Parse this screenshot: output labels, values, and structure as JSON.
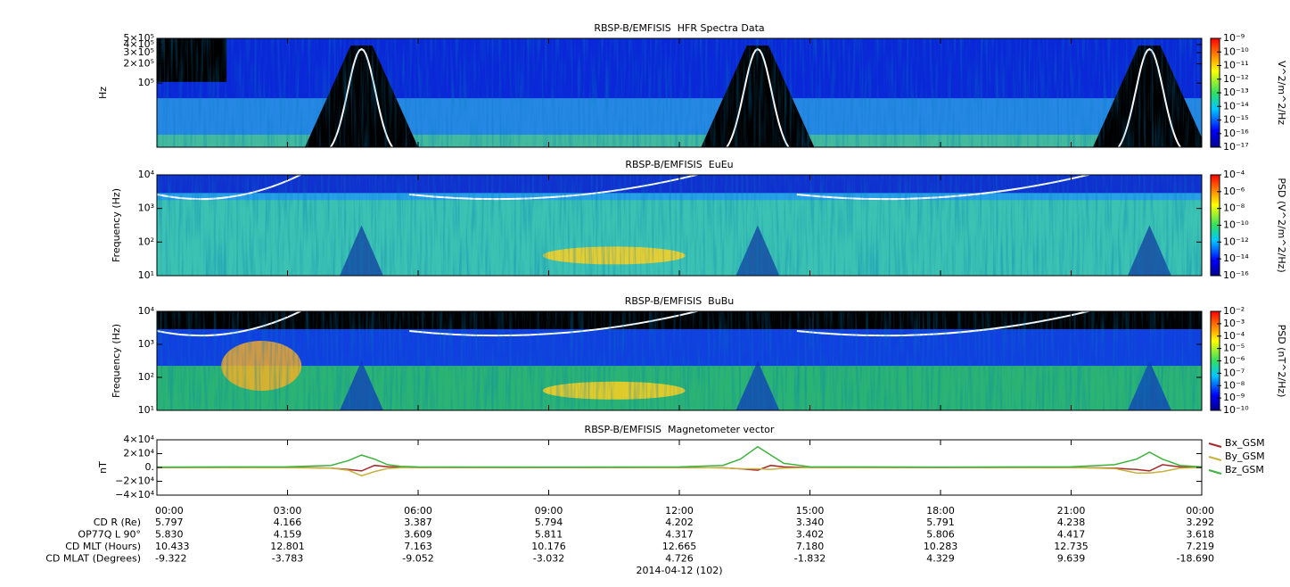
{
  "chart_data": [
    {
      "type": "spectrogram",
      "title": "RBSP-B/EMFISIS  HFR Spectra Data",
      "ylabel": "Hz",
      "log_scale": true,
      "ylim": [
        10000,
        500000
      ],
      "yticks": [
        {
          "value": 500000,
          "label": "5×10⁵"
        },
        {
          "value": 400000,
          "label": "4×10⁵"
        },
        {
          "value": 300000,
          "label": "3×10⁵"
        },
        {
          "value": 200000,
          "label": "2×10⁵"
        },
        {
          "value": 100000,
          "label": "10⁵"
        }
      ],
      "colorbar": {
        "label": "V^2/m^2/Hz",
        "lim": [
          1e-17,
          1e-09
        ],
        "ticks": [
          {
            "value": 1e-09,
            "label": "10⁻⁹"
          },
          {
            "value": 1e-10,
            "label": "10⁻¹⁰"
          },
          {
            "value": 1e-11,
            "label": "10⁻¹¹"
          },
          {
            "value": 1e-12,
            "label": "10⁻¹²"
          },
          {
            "value": 1e-13,
            "label": "10⁻¹³"
          },
          {
            "value": 1e-14,
            "label": "10⁻¹⁴"
          },
          {
            "value": 1e-15,
            "label": "10⁻¹⁵"
          },
          {
            "value": 1e-16,
            "label": "10⁻¹⁶"
          },
          {
            "value": 1e-17,
            "label": "10⁻¹⁷"
          }
        ]
      }
    },
    {
      "type": "spectrogram",
      "title": "RBSP-B/EMFISIS  EuEu",
      "ylabel": "Frequency (Hz)",
      "log_scale": true,
      "ylim": [
        10,
        10000
      ],
      "yticks": [
        {
          "value": 10000,
          "label": "10⁴"
        },
        {
          "value": 1000,
          "label": "10³"
        },
        {
          "value": 100,
          "label": "10²"
        },
        {
          "value": 10,
          "label": "10¹"
        }
      ],
      "colorbar": {
        "label": "PSD (V^2/m^2/Hz)",
        "lim": [
          1e-16,
          0.0001
        ],
        "ticks": [
          {
            "value": 0.0001,
            "label": "10⁻⁴"
          },
          {
            "value": 1e-06,
            "label": "10⁻⁶"
          },
          {
            "value": 1e-08,
            "label": "10⁻⁸"
          },
          {
            "value": 1e-10,
            "label": "10⁻¹⁰"
          },
          {
            "value": 1e-12,
            "label": "10⁻¹²"
          },
          {
            "value": 1e-14,
            "label": "10⁻¹⁴"
          },
          {
            "value": 1e-16,
            "label": "10⁻¹⁶"
          }
        ]
      }
    },
    {
      "type": "spectrogram",
      "title": "RBSP-B/EMFISIS  BuBu",
      "ylabel": "Frequency (Hz)",
      "log_scale": true,
      "ylim": [
        10,
        10000
      ],
      "yticks": [
        {
          "value": 10000,
          "label": "10⁴"
        },
        {
          "value": 1000,
          "label": "10³"
        },
        {
          "value": 100,
          "label": "10²"
        },
        {
          "value": 10,
          "label": "10¹"
        }
      ],
      "colorbar": {
        "label": "PSD (nT^2/Hz)",
        "lim": [
          1e-10,
          0.01
        ],
        "ticks": [
          {
            "value": 0.01,
            "label": "10⁻²"
          },
          {
            "value": 0.001,
            "label": "10⁻³"
          },
          {
            "value": 0.0001,
            "label": "10⁻⁴"
          },
          {
            "value": 1e-05,
            "label": "10⁻⁵"
          },
          {
            "value": 1e-06,
            "label": "10⁻⁶"
          },
          {
            "value": 1e-07,
            "label": "10⁻⁷"
          },
          {
            "value": 1e-08,
            "label": "10⁻⁸"
          },
          {
            "value": 1e-09,
            "label": "10⁻⁹"
          },
          {
            "value": 1e-10,
            "label": "10⁻¹⁰"
          }
        ]
      }
    },
    {
      "type": "line",
      "title": "RBSP-B/EMFISIS  Magnetometer vector",
      "ylabel": "nT",
      "ylim": [
        -40000,
        40000
      ],
      "yticks": [
        {
          "value": 40000,
          "label": "4×10⁴"
        },
        {
          "value": 20000,
          "label": "2×10⁴"
        },
        {
          "value": 0,
          "label": "0."
        },
        {
          "value": -20000,
          "label": "−2×10⁴"
        },
        {
          "value": -40000,
          "label": "−4×10⁴"
        }
      ],
      "xlim": [
        0,
        24
      ],
      "xticks": [
        {
          "value": 0,
          "label": "00:00"
        },
        {
          "value": 3,
          "label": "03:00"
        },
        {
          "value": 6,
          "label": "06:00"
        },
        {
          "value": 9,
          "label": "09:00"
        },
        {
          "value": 12,
          "label": "12:00"
        },
        {
          "value": 15,
          "label": "15:00"
        },
        {
          "value": 18,
          "label": "18:00"
        },
        {
          "value": 21,
          "label": "21:00"
        },
        {
          "value": 24,
          "label": "00:00"
        }
      ],
      "x": [
        0,
        3,
        4,
        4.4,
        4.7,
        5,
        5.3,
        5.6,
        6,
        9,
        12,
        13,
        13.4,
        13.8,
        14.1,
        14.4,
        15,
        18,
        21,
        22,
        22.5,
        22.8,
        23.1,
        23.5,
        24
      ],
      "series": [
        {
          "name": "Bx_GSM",
          "color": "#a52a2a",
          "values": [
            0,
            200,
            -1000,
            -3000,
            -5000,
            3000,
            1000,
            200,
            0,
            0,
            0,
            -500,
            -2000,
            -4000,
            3000,
            800,
            0,
            0,
            0,
            -1000,
            -3000,
            -5000,
            4000,
            800,
            0
          ]
        },
        {
          "name": "By_GSM",
          "color": "#c8b040",
          "values": [
            0,
            -200,
            -1000,
            -4000,
            -12000,
            -6000,
            -1500,
            -300,
            0,
            0,
            0,
            -500,
            -2000,
            -2000,
            -3000,
            -1000,
            0,
            0,
            0,
            -1500,
            -8000,
            -8000,
            -6000,
            -1000,
            0
          ]
        },
        {
          "name": "Bz_GSM",
          "color": "#3cb43c",
          "values": [
            500,
            1000,
            3000,
            10000,
            18000,
            12000,
            4000,
            1500,
            800,
            500,
            800,
            3000,
            12000,
            30000,
            18000,
            6000,
            1000,
            500,
            1000,
            4000,
            12000,
            22000,
            12000,
            3000,
            800
          ]
        }
      ],
      "ephemeris": [
        {
          "label": "CD R (Re)",
          "values": [
            "5.797",
            "4.166",
            "3.387",
            "5.794",
            "4.202",
            "3.340",
            "5.791",
            "4.238",
            "3.292"
          ]
        },
        {
          "label": "OP77Q L 90°",
          "values": [
            "5.830",
            "4.159",
            "3.609",
            "5.811",
            "4.317",
            "3.402",
            "5.806",
            "4.417",
            "3.618"
          ]
        },
        {
          "label": "CD MLT (Hours)",
          "values": [
            "10.433",
            "12.801",
            "7.163",
            "10.176",
            "12.665",
            "7.180",
            "10.283",
            "12.735",
            "7.219"
          ]
        },
        {
          "label": "CD MLAT (Degrees)",
          "values": [
            "-9.322",
            "-3.783",
            "-9.052",
            "-3.032",
            "4.726",
            "-1.832",
            "4.329",
            "9.639",
            "-18.690"
          ]
        }
      ],
      "xlabel": "2014-04-12 (102)"
    }
  ]
}
